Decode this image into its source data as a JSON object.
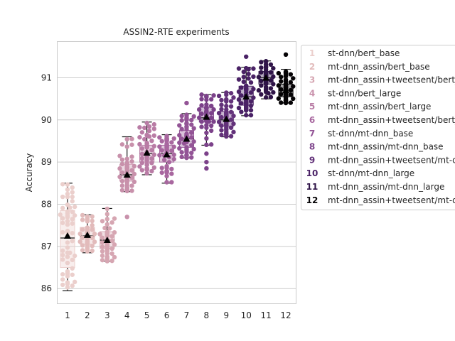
{
  "chart_data": {
    "type": "swarm-box",
    "title": "ASSIN2-RTE experiments",
    "xlabel": "",
    "ylabel": "Accuracy",
    "ylim": [
      85.65,
      91.85
    ],
    "yticks": [
      86,
      87,
      88,
      89,
      90,
      91
    ],
    "grid": "horizontal",
    "legend_placement": "outside-right",
    "categories": [
      "1",
      "2",
      "3",
      "4",
      "5",
      "6",
      "7",
      "8",
      "9",
      "10",
      "11",
      "12"
    ],
    "colors": [
      "#ebcfcc",
      "#e2bbbb",
      "#d6a6b2",
      "#c891ab",
      "#b97ca5",
      "#a8679f",
      "#935496",
      "#7c428a",
      "#63327a",
      "#4a2266",
      "#2f1448",
      "#050305"
    ],
    "legend": [
      {
        "num": "1",
        "label": "st-dnn/bert_base"
      },
      {
        "num": "2",
        "label": "mt-dnn_assin/bert_base"
      },
      {
        "num": "3",
        "label": "mt-dnn_assin+tweetsent/bert_base"
      },
      {
        "num": "4",
        "label": "st-dnn/bert_large"
      },
      {
        "num": "5",
        "label": "mt-dnn_assin/bert_large"
      },
      {
        "num": "6",
        "label": "mt-dnn_assin+tweetsent/bert_large"
      },
      {
        "num": "7",
        "label": "st-dnn/mt-dnn_base"
      },
      {
        "num": "8",
        "label": "mt-dnn_assin/mt-dnn_base"
      },
      {
        "num": "9",
        "label": "mt-dnn_assin+tweetsent/mt-dnn_base"
      },
      {
        "num": "10",
        "label": "st-dnn/mt-dnn_large"
      },
      {
        "num": "11",
        "label": "mt-dnn_assin/mt-dnn_large"
      },
      {
        "num": "12",
        "label": "mt-dnn_assin+tweetsent/mt-dnn_large"
      }
    ],
    "series": [
      {
        "category": "1",
        "min": 85.95,
        "q1": 86.5,
        "median": 87.2,
        "q3": 87.85,
        "max": 88.5,
        "mean": 87.25,
        "n": 60
      },
      {
        "category": "2",
        "min": 86.85,
        "q1": 87.05,
        "median": 87.25,
        "q3": 87.45,
        "max": 87.75,
        "mean": 87.27,
        "n": 60
      },
      {
        "category": "3",
        "min": 86.65,
        "q1": 86.95,
        "median": 87.15,
        "q3": 87.35,
        "max": 87.9,
        "mean": 87.15,
        "n": 60
      },
      {
        "category": "4",
        "min": 88.3,
        "q1": 88.55,
        "median": 88.7,
        "q3": 88.95,
        "max": 89.6,
        "mean": 88.7,
        "n": 60,
        "outliers": [
          87.7
        ]
      },
      {
        "category": "5",
        "min": 88.7,
        "q1": 89.0,
        "median": 89.2,
        "q3": 89.4,
        "max": 89.95,
        "mean": 89.22,
        "n": 60
      },
      {
        "category": "6",
        "min": 88.5,
        "q1": 89.0,
        "median": 89.2,
        "q3": 89.4,
        "max": 89.65,
        "mean": 89.18,
        "n": 60
      },
      {
        "category": "7",
        "min": 89.1,
        "q1": 89.35,
        "median": 89.55,
        "q3": 89.75,
        "max": 90.15,
        "mean": 89.55,
        "n": 60,
        "outliers": [
          90.4
        ]
      },
      {
        "category": "8",
        "min": 89.4,
        "q1": 89.95,
        "median": 90.05,
        "q3": 90.3,
        "max": 90.6,
        "mean": 90.07,
        "n": 60,
        "outliers": [
          89.2,
          89.0,
          88.85
        ]
      },
      {
        "category": "9",
        "min": 89.6,
        "q1": 89.85,
        "median": 90.0,
        "q3": 90.2,
        "max": 90.65,
        "mean": 90.02,
        "n": 60
      },
      {
        "category": "10",
        "min": 90.1,
        "q1": 90.35,
        "median": 90.55,
        "q3": 90.8,
        "max": 91.25,
        "mean": 90.55,
        "n": 60,
        "outliers": [
          91.5
        ]
      },
      {
        "category": "11",
        "min": 90.5,
        "q1": 90.85,
        "median": 91.0,
        "q3": 91.15,
        "max": 91.4,
        "mean": 91.0,
        "n": 60
      },
      {
        "category": "12",
        "min": 90.4,
        "q1": 90.55,
        "median": 90.7,
        "q3": 90.85,
        "max": 91.2,
        "mean": 90.7,
        "n": 60,
        "outliers": [
          91.55
        ]
      }
    ]
  }
}
